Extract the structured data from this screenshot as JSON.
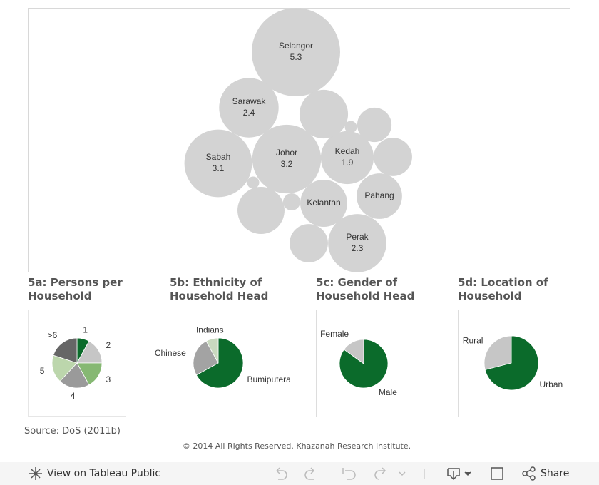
{
  "chart_data": [
    {
      "type": "bubble",
      "color": "#d3d3d3",
      "categories": [
        "Selangor",
        "Sarawak",
        "Sabah",
        "Johor",
        "Kedah",
        "Kelantan",
        "Pahang",
        "Perak",
        null,
        null,
        null,
        null,
        null,
        null,
        null,
        null
      ],
      "values": [
        5.3,
        2.4,
        3.1,
        3.2,
        1.9,
        1.5,
        1.4,
        2.3,
        1.6,
        0.8,
        1.0,
        0.1,
        0.1,
        0.2,
        1.5,
        1.0
      ],
      "value_labels": [
        "5.3",
        "2.4",
        "3.1",
        "3.2",
        "1.9",
        null,
        null,
        "2.3",
        null,
        null,
        null,
        null,
        null,
        null,
        null,
        null
      ]
    },
    {
      "type": "pie",
      "title": "5a: Persons per Household",
      "categories": [
        "1",
        "2",
        "3",
        "4",
        "5",
        ">6"
      ],
      "values": [
        8,
        17,
        17,
        20,
        18,
        20
      ],
      "colors": [
        "#0b6b2b",
        "#c6c6c6",
        "#86b873",
        "#9a9a9a",
        "#bcd6ac",
        "#666666"
      ]
    },
    {
      "type": "pie",
      "title": "5b: Ethnicity of Household Head",
      "categories": [
        "Bumiputera",
        "Chinese",
        "Indians"
      ],
      "values": [
        67,
        25,
        8
      ],
      "colors": [
        "#0b6b2b",
        "#a3a3a3",
        "#c9d9bf"
      ]
    },
    {
      "type": "pie",
      "title": "5c: Gender of Household Head",
      "categories": [
        "Male",
        "Female"
      ],
      "values": [
        85,
        15
      ],
      "colors": [
        "#0b6b2b",
        "#c6c6c6"
      ]
    },
    {
      "type": "pie",
      "title": "5d: Location of Household",
      "categories": [
        "Urban",
        "Rural"
      ],
      "values": [
        71,
        29
      ],
      "colors": [
        "#0b6b2b",
        "#c6c6c6"
      ]
    }
  ],
  "source": "Source: DoS (2011b)",
  "copyright": "© 2014 All Rights Reserved. Khazanah Research Institute.",
  "toolbar": {
    "view": "View on Tableau Public",
    "share": "Share"
  }
}
